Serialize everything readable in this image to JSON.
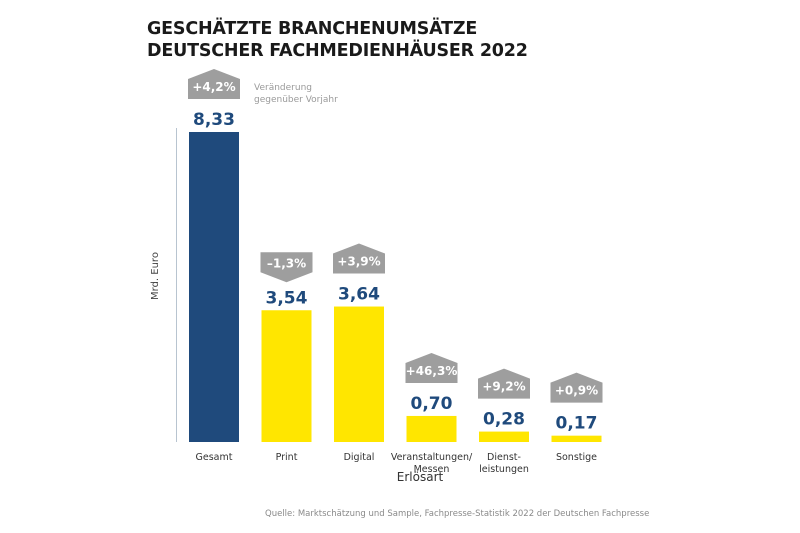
{
  "chart_data": {
    "type": "bar",
    "title": "GESCHÄTZTE BRANCHENUMSÄTZE DEUTSCHER FACHMEDIENHÄUSER 2022",
    "title_lines": [
      "GESCHÄTZTE BRANCHENUMSÄTZE",
      "DEUTSCHER FACHMEDIENHÄUSER 2022"
    ],
    "xlabel": "Erlösart",
    "ylabel": "Mrd. Euro",
    "ylim": [
      0,
      8.33
    ],
    "grid": false,
    "categories": [
      {
        "lines": [
          "Gesamt"
        ]
      },
      {
        "lines": [
          "Print"
        ]
      },
      {
        "lines": [
          "Digital"
        ]
      },
      {
        "lines": [
          "Veranstaltungen/",
          "Messen"
        ]
      },
      {
        "lines": [
          "Dienst-",
          "leistungen"
        ]
      },
      {
        "lines": [
          "Sonstige"
        ]
      }
    ],
    "values": [
      8.33,
      3.54,
      3.64,
      0.7,
      0.28,
      0.17
    ],
    "value_labels": [
      "8,33",
      "3,54",
      "3,64",
      "0,70",
      "0,28",
      "0,17"
    ],
    "changes": [
      4.2,
      -1.3,
      3.9,
      46.3,
      9.2,
      0.9
    ],
    "change_labels": [
      "+4,2%",
      "–1,3%",
      "+3,9%",
      "+46,3%",
      "+9,2%",
      "+0,9%"
    ],
    "change_legend": [
      "Veränderung",
      "gegenüber Vorjahr"
    ],
    "colors": {
      "total": "#1f4a7c",
      "segment": "#ffe600",
      "badge": "#9e9e9e",
      "value_text": "#1f4a7c"
    },
    "source": "Quelle: Marktschätzung und Sample, Fachpresse-Statistik 2022 der Deutschen Fachpresse"
  }
}
